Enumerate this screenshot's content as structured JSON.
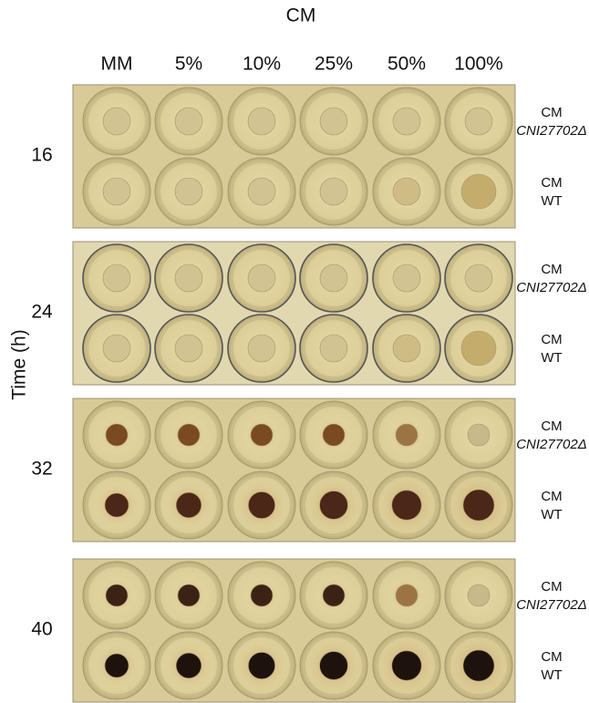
{
  "header": {
    "title": "CM",
    "columns": [
      "MM",
      "5%",
      "10%",
      "25%",
      "50%",
      "100%"
    ]
  },
  "axis_label": "Time (h)",
  "panels": [
    {
      "time": "16",
      "rows": [
        {
          "line1": "CM",
          "line2": "CNI27702Δ"
        },
        {
          "line1": "CM",
          "line2": "WT"
        }
      ]
    },
    {
      "time": "24",
      "rows": [
        {
          "line1": "CM",
          "line2": "CNI27702Δ"
        },
        {
          "line1": "CM",
          "line2": "WT"
        }
      ]
    },
    {
      "time": "32",
      "rows": [
        {
          "line1": "CM",
          "line2": "CNI27702Δ"
        },
        {
          "line1": "CM",
          "line2": "WT"
        }
      ]
    },
    {
      "time": "40",
      "rows": [
        {
          "line1": "CM",
          "line2": "CNI27702Δ"
        },
        {
          "line1": "CM",
          "line2": "WT"
        }
      ]
    }
  ]
}
